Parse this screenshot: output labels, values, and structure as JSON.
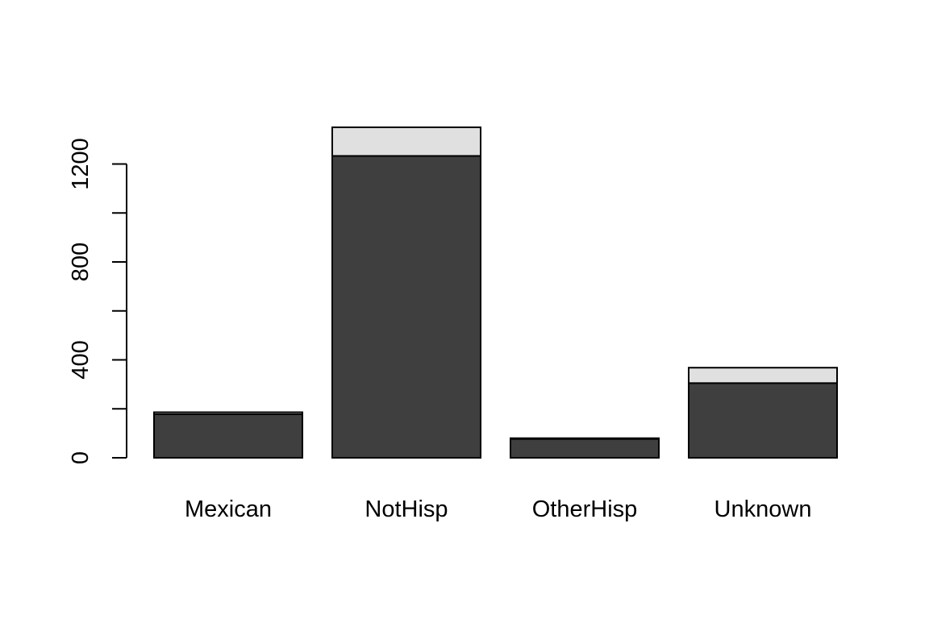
{
  "chart_data": {
    "type": "bar",
    "stacked": true,
    "categories": [
      "Mexican",
      "NotHisp",
      "OtherHisp",
      "Unknown"
    ],
    "series": [
      {
        "values": [
          178,
          1233,
          77,
          305
        ],
        "color": "#3f3f3f"
      },
      {
        "values": [
          8,
          117,
          3,
          63
        ],
        "color": "#e0e0e0"
      }
    ],
    "y_ticks": [
      0,
      200,
      400,
      600,
      800,
      1000,
      1200
    ],
    "y_tick_labels": [
      "0",
      "",
      "400",
      "",
      "800",
      "",
      "1200"
    ],
    "ylim": [
      0,
      1350
    ],
    "title": "",
    "xlabel": "",
    "ylabel": "",
    "grid": false,
    "legend": "none",
    "bar_edge_color": "#000000"
  }
}
